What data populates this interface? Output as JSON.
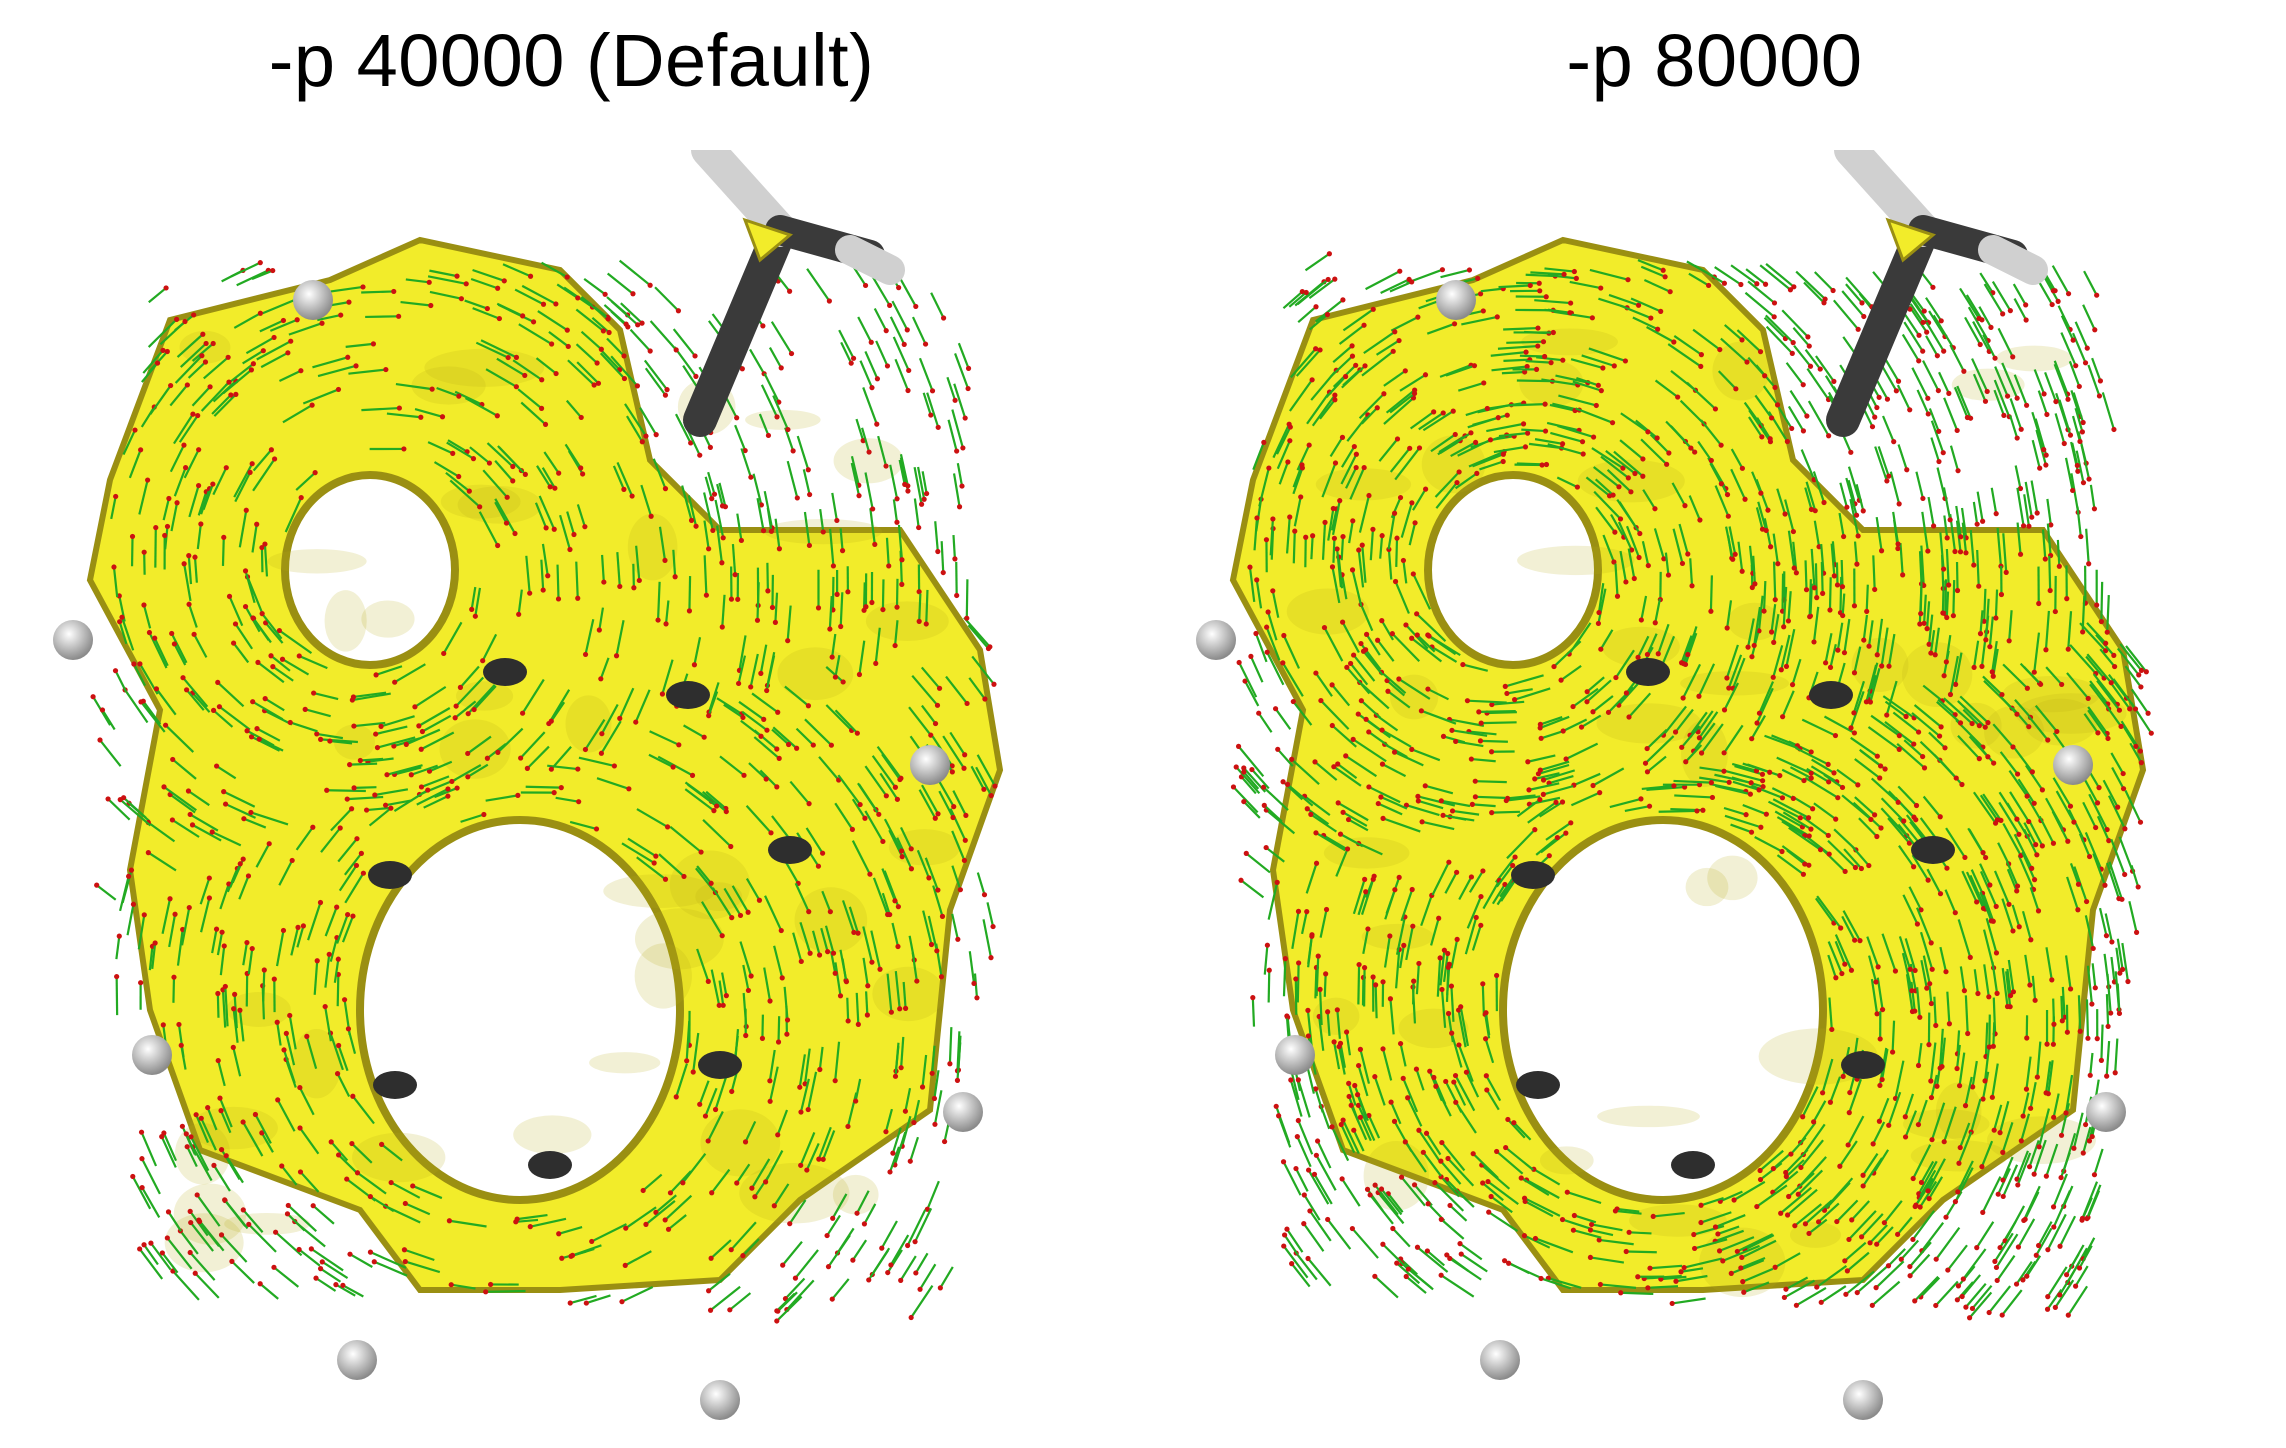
{
  "panels": [
    {
      "title": "-p 40000 (Default)"
    },
    {
      "title": "-p 80000"
    }
  ],
  "colors": {
    "surface": "#f2ec2a",
    "surface_shadow": "#9a8f12",
    "arrow_shaft": "#22aa22",
    "arrow_head": "#cc1111",
    "atom_carbon": "#2e2e2e",
    "atom_hydrogen": "#d8d8d8"
  }
}
